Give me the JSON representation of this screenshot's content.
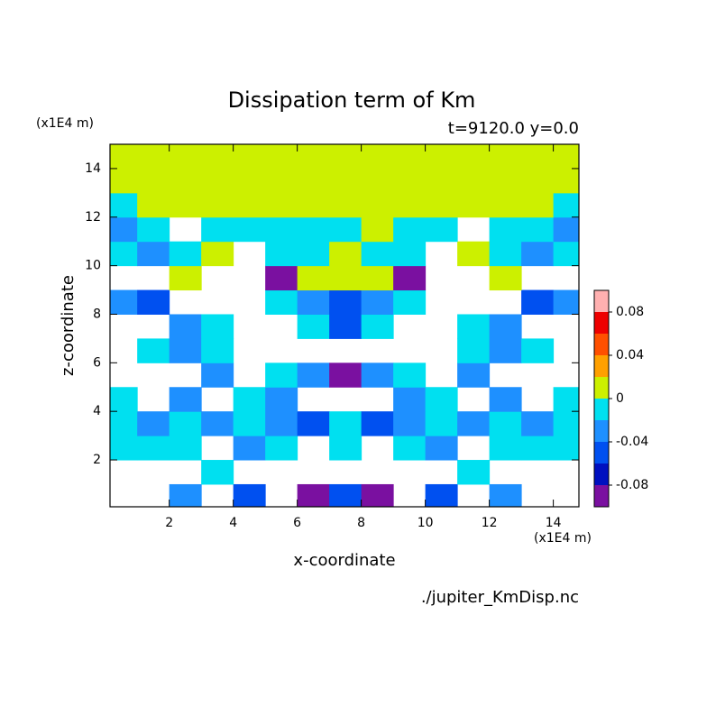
{
  "chart_data": {
    "type": "contour",
    "title": "Dissipation term of Km",
    "subtitle": "t=9120.0 y=0.0",
    "x_label": "x-coordinate",
    "y_label": "z-coordinate",
    "x_unit": "(x1E4 m)",
    "y_unit": "(x1E4 m)",
    "source": "./jupiter_KmDisp.nc",
    "xlim": [
      0.15,
      14.8
    ],
    "ylim": [
      0.07,
      15
    ],
    "xticks": [
      2,
      4,
      6,
      8,
      10,
      12,
      14
    ],
    "yticks": [
      2,
      4,
      6,
      8,
      10,
      12,
      14
    ],
    "x": [
      0.5,
      1.5,
      2.5,
      3.5,
      4.5,
      5.5,
      6.5,
      7.5,
      8.5,
      9.5,
      10.5,
      11.5,
      12.5,
      13.5,
      14.5
    ],
    "y": [
      0.5,
      1.5,
      2.5,
      3.5,
      4.5,
      5.5,
      6.5,
      7.5,
      8.5,
      9.5,
      10.5,
      11.5,
      12.5,
      13.5,
      14.5
    ],
    "z": [
      [
        null,
        null,
        -0.03,
        null,
        -0.05,
        null,
        -0.09,
        -0.05,
        -0.09,
        null,
        -0.05,
        null,
        -0.03,
        null,
        null
      ],
      [
        null,
        null,
        null,
        -0.01,
        null,
        null,
        null,
        null,
        null,
        null,
        null,
        -0.01,
        null,
        null,
        null
      ],
      [
        -0.01,
        -0.01,
        -0.01,
        null,
        -0.03,
        -0.01,
        null,
        -0.01,
        null,
        -0.01,
        -0.03,
        null,
        -0.01,
        -0.01,
        -0.01
      ],
      [
        -0.01,
        -0.03,
        -0.01,
        -0.03,
        -0.01,
        -0.03,
        -0.05,
        -0.01,
        -0.05,
        -0.03,
        -0.01,
        -0.03,
        -0.01,
        -0.03,
        -0.01
      ],
      [
        -0.01,
        null,
        -0.03,
        null,
        -0.01,
        -0.03,
        null,
        null,
        null,
        -0.03,
        -0.01,
        null,
        -0.03,
        null,
        -0.01
      ],
      [
        null,
        null,
        null,
        -0.03,
        null,
        -0.01,
        -0.03,
        -0.09,
        -0.03,
        -0.01,
        null,
        -0.03,
        null,
        null,
        null
      ],
      [
        null,
        -0.01,
        -0.03,
        -0.01,
        null,
        null,
        null,
        null,
        null,
        null,
        null,
        -0.01,
        -0.03,
        -0.01,
        null
      ],
      [
        null,
        null,
        -0.03,
        -0.01,
        null,
        null,
        -0.01,
        -0.05,
        -0.01,
        null,
        null,
        -0.01,
        -0.03,
        null,
        null
      ],
      [
        -0.03,
        -0.05,
        null,
        null,
        null,
        -0.01,
        -0.03,
        -0.05,
        -0.03,
        -0.01,
        null,
        null,
        null,
        -0.05,
        -0.03
      ],
      [
        null,
        null,
        0.01,
        null,
        null,
        -0.09,
        0.01,
        0.01,
        0.01,
        -0.09,
        null,
        null,
        0.01,
        null,
        null
      ],
      [
        -0.01,
        -0.03,
        -0.01,
        0.01,
        null,
        -0.01,
        -0.01,
        0.01,
        -0.01,
        -0.01,
        null,
        0.01,
        -0.01,
        -0.03,
        -0.01
      ],
      [
        -0.03,
        -0.01,
        null,
        -0.01,
        -0.01,
        -0.01,
        -0.01,
        -0.01,
        0.01,
        -0.01,
        -0.01,
        null,
        -0.01,
        -0.01,
        -0.03
      ],
      [
        -0.01,
        0.01,
        0.01,
        0.01,
        0.01,
        0.01,
        0.01,
        0.01,
        0.01,
        0.01,
        0.01,
        0.01,
        0.01,
        0.01,
        -0.01
      ],
      [
        0.01,
        0.01,
        0.01,
        0.01,
        0.01,
        0.01,
        0.01,
        0.01,
        0.01,
        0.01,
        0.01,
        0.01,
        0.01,
        0.01,
        0.01
      ],
      [
        0.01,
        0.01,
        0.01,
        0.01,
        0.01,
        0.01,
        0.01,
        0.01,
        0.01,
        0.01,
        0.01,
        0.01,
        0.01,
        0.01,
        0.01
      ]
    ],
    "levels": [
      -0.1,
      -0.08,
      -0.06,
      -0.04,
      -0.02,
      0,
      0.02,
      0.04,
      0.06,
      0.08,
      0.1
    ],
    "colors": [
      "#7a10a0",
      "#0010c0",
      "#0050f0",
      "#1e90ff",
      "#00e0f0",
      "#ccf000",
      "#ffa000",
      "#ff5000",
      "#ee0000",
      "#ffb0b0"
    ],
    "colorbar_ticks": [
      -0.08,
      -0.04,
      0,
      0.04,
      0.08
    ]
  }
}
